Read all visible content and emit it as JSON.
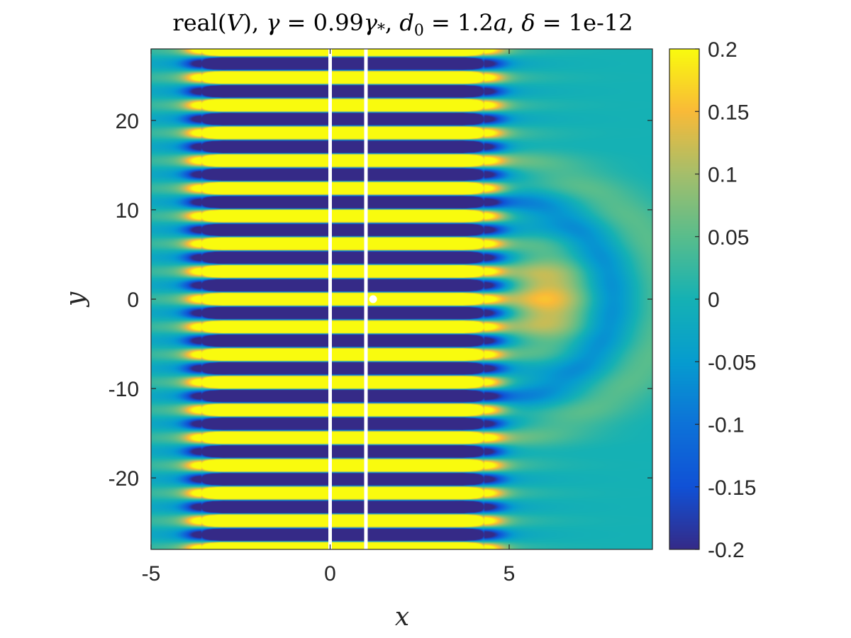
{
  "chart_data": {
    "type": "heatmap",
    "title": "real(V), γ = 0.99γ*, d0 = 1.2a, δ = 1e-12",
    "title_parts": {
      "p1": "real(",
      "p2": "V",
      "p3": "), ",
      "p4": "γ",
      "p5": " = 0.99",
      "p6": "γ",
      "p7": "*",
      "p8": ", ",
      "p9": "d",
      "p10": "0",
      "p11": " = 1.2",
      "p12": "a",
      "p13": ", ",
      "p14": "δ",
      "p15": " = 1e-12"
    },
    "xlabel": "x",
    "ylabel": "y",
    "xlim": [
      -5,
      9
    ],
    "ylim": [
      -28,
      28
    ],
    "x_ticks": [
      "-5",
      "0",
      "5"
    ],
    "y_ticks": [
      "-20",
      "-10",
      "0",
      "10",
      "20"
    ],
    "colorbar": {
      "range": [
        -0.2,
        0.2
      ],
      "ticks": [
        "-0.2",
        "-0.15",
        "-0.1",
        "-0.05",
        "0",
        "0.05",
        "0.1",
        "0.15",
        "0.2"
      ],
      "colormap": "parula"
    },
    "field": {
      "stripe_period_y": 3.1,
      "saturated_band_x": [
        -3.6,
        4.3
      ],
      "edge_glow_x": [
        -3.8,
        4.5
      ],
      "lobe_center": [
        6.0,
        0
      ],
      "lobe_peak": 0.15,
      "lobe_ring_trough": -0.08
    },
    "overlays": {
      "vertical_lines_x": [
        0,
        1
      ],
      "marker_point": [
        1.2,
        0
      ],
      "color": "#ffffff"
    }
  }
}
